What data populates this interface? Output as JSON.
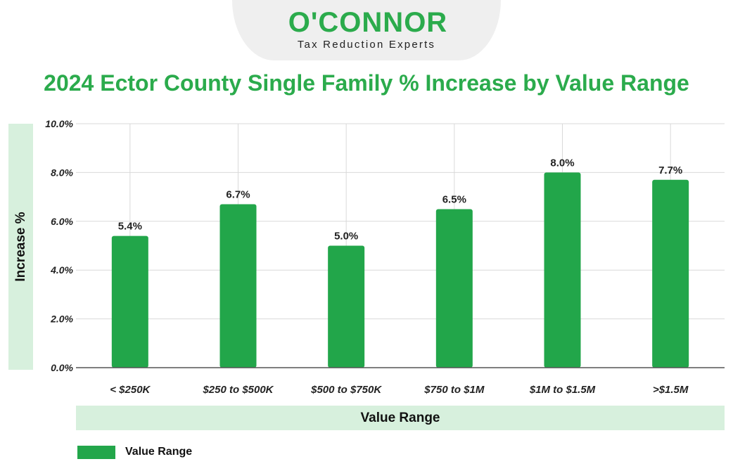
{
  "brand": {
    "name": "O'CONNOR",
    "tagline": "Tax Reduction Experts",
    "color": "#2bab4c"
  },
  "chart_data": {
    "type": "bar",
    "title": "2024 Ector County Single Family % Increase by Value Range",
    "xlabel": "Value Range",
    "ylabel": "Increase %",
    "categories": [
      "< $250K",
      "$250 to $500K",
      "$500 to $750K",
      "$750 to $1M",
      "$1M to $1.5M",
      ">$1.5M"
    ],
    "series": [
      {
        "name": "Value Range",
        "values": [
          5.4,
          6.7,
          5.0,
          6.5,
          8.0,
          7.7
        ],
        "labels": [
          "5.4%",
          "6.7%",
          "5.0%",
          "6.5%",
          "8.0%",
          "7.7%"
        ],
        "color": "#22a64a"
      }
    ],
    "ylim": [
      0,
      10
    ],
    "yticks": [
      "0.0%",
      "2.0%",
      "4.0%",
      "6.0%",
      "8.0%",
      "10.0%"
    ],
    "grid": true,
    "legend_position": "bottom-left"
  }
}
